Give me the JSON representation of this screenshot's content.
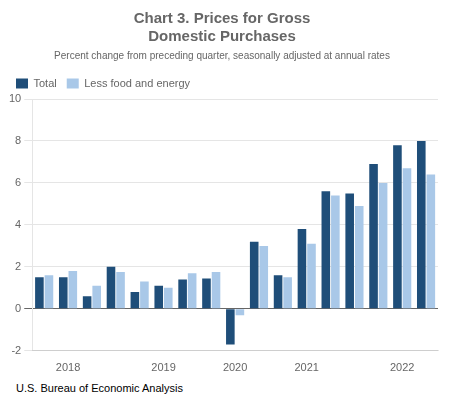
{
  "chart_data": {
    "type": "bar",
    "title": "Chart 3. Prices for Gross\nDomestic Purchases",
    "subtitle": "Percent change from preceding quarter, seasonally adjusted at annual rates",
    "footer": "U.S. Bureau of Economic Analysis",
    "categories": [
      null,
      "2018",
      null,
      null,
      null,
      "2019",
      null,
      null,
      "2020",
      null,
      null,
      "2021",
      null,
      null,
      null,
      "2022",
      null
    ],
    "series": [
      {
        "name": "Total",
        "color": "#1F4E79",
        "values": [
          1.5,
          1.5,
          0.6,
          2.0,
          0.8,
          1.1,
          1.4,
          1.45,
          -1.7,
          3.2,
          1.6,
          3.8,
          5.6,
          5.5,
          6.9,
          7.8,
          8.0
        ]
      },
      {
        "name": "Less food and energy",
        "color": "#A9C8E8",
        "values": [
          1.6,
          1.8,
          1.1,
          1.75,
          1.3,
          1.0,
          1.7,
          1.75,
          -0.3,
          3.0,
          1.5,
          3.1,
          5.4,
          4.9,
          6.0,
          6.7,
          6.4
        ]
      }
    ],
    "ylim": [
      -2,
      10
    ],
    "yticks": [
      -2,
      0,
      2,
      4,
      6,
      8,
      10
    ],
    "grid": true,
    "legend": "upper left"
  }
}
